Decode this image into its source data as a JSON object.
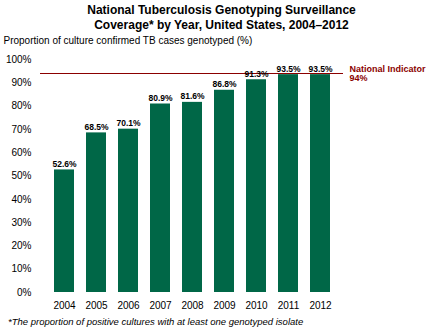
{
  "chart_data": {
    "type": "bar",
    "title": "National Tuberculosis Genotyping Surveillance",
    "subtitle": "Coverage* by Year, United States, 2004–2012",
    "categories": [
      "2004",
      "2005",
      "2006",
      "2007",
      "2008",
      "2009",
      "2010",
      "2011",
      "2012"
    ],
    "values": [
      52.6,
      68.5,
      70.1,
      80.9,
      81.6,
      86.8,
      91.3,
      93.5,
      93.5
    ],
    "value_labels": [
      "52.6%",
      "68.5%",
      "70.1%",
      "80.9%",
      "81.6%",
      "86.8%",
      "91.3%",
      "93.5%",
      "93.5%"
    ],
    "data_labels": true,
    "color": "#006747",
    "ylabel": "Proportion of culture confirmed TB cases genotyped (%)",
    "ylim": [
      0,
      100
    ],
    "yticks": [
      {
        "value": 0,
        "label": "0%"
      },
      {
        "value": 10,
        "label": "10%"
      },
      {
        "value": 20,
        "label": "20%"
      },
      {
        "value": 30,
        "label": "30%"
      },
      {
        "value": 40,
        "label": "40%"
      },
      {
        "value": 50,
        "label": "50%"
      },
      {
        "value": 60,
        "label": "60%"
      },
      {
        "value": 70,
        "label": "70%"
      },
      {
        "value": 80,
        "label": "80%"
      },
      {
        "value": 90,
        "label": "90%"
      },
      {
        "value": 100,
        "label": "100%"
      }
    ],
    "grid": false,
    "annotations": [
      {
        "text": "National Indicator\n94%",
        "y": 94,
        "color": "#8B0000"
      }
    ],
    "footnote": "*The proportion of positive cultures with at least one genotyped isolate"
  }
}
